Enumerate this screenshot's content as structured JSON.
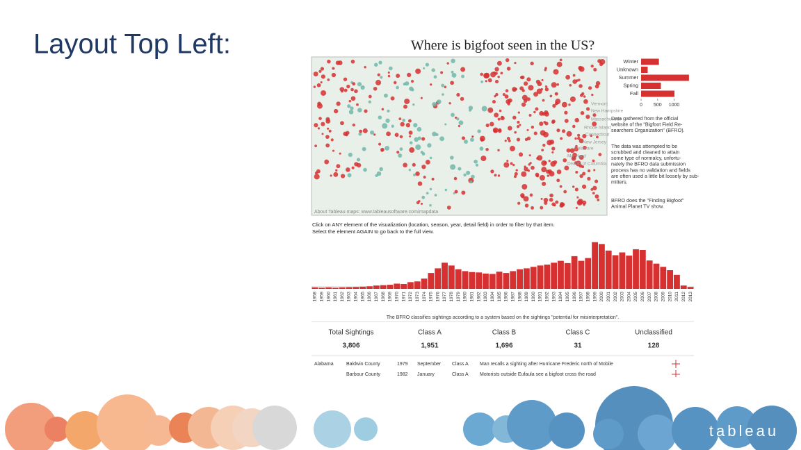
{
  "slide": {
    "title": "Layout Top Left:",
    "logo": "tableau"
  },
  "dashboard": {
    "title": "Where is bigfoot seen in the US?",
    "map": {
      "attribution": "About Tableau maps: www.tableausoftware.com/mapdata",
      "labels": [
        "Vermont",
        "New Hampshire",
        "Massachusetts",
        "Rhode Island",
        "Connecticut",
        "New Jersey",
        "Delaware",
        "Maryland",
        "District of Columbia"
      ]
    },
    "notes": [
      [
        "Data gathered from the official",
        "website of the \"Bigfoot Field Re-",
        "searchers Organization\" (BFRO)."
      ],
      [
        "The data was attempted to be",
        "scrubbed and cleaned to attain",
        "some type of normalcy, unfortu-",
        "nately the BFRO data submission",
        "process has no validation and fields",
        "are often used a little bit loosely by sub-",
        "mitters."
      ],
      [
        "BFRO does the \"Finding Bigfoot\"",
        "Animal Planet TV show."
      ]
    ],
    "instructions": [
      "Click on ANY element of the visualization (location, season, year, detail field) in order to filter by that item.",
      "Select the element AGAIN to go back to the full view."
    ],
    "footnote": "The BFRO classifies sightings according to a system based on the sightings \"potential for misinterpretation\".",
    "summary": {
      "headers": [
        "Total Sightings",
        "Class A",
        "Class B",
        "Class C",
        "Unclassified"
      ],
      "values": [
        "3,806",
        "1,951",
        "1,696",
        "31",
        "128"
      ]
    },
    "table": {
      "rows": [
        [
          "Alabama",
          "Baldwin County",
          "1979",
          "September",
          "Class A",
          "Man recalls a sighting after Hurricane Frederic north of Mobile"
        ],
        [
          "",
          "Barbour County",
          "1982",
          "January",
          "Class A",
          "Motorists outside Eufaula see a bigfoot cross the road"
        ]
      ]
    }
  },
  "chart_data": [
    {
      "type": "hbar",
      "categories": [
        "Winter",
        "Unknown",
        "Summer",
        "Spring",
        "Fall"
      ],
      "values": [
        540,
        200,
        1450,
        600,
        1010
      ],
      "color": "#d63031",
      "xlim": [
        0,
        1600
      ],
      "xticks": [
        0,
        500,
        1000
      ]
    },
    {
      "type": "bar",
      "categories": [
        "1958",
        "1959",
        "1960",
        "1961",
        "1962",
        "1963",
        "1964",
        "1965",
        "1966",
        "1967",
        "1968",
        "1969",
        "1970",
        "1971",
        "1972",
        "1973",
        "1974",
        "1975",
        "1976",
        "1977",
        "1978",
        "1979",
        "1980",
        "1981",
        "1982",
        "1983",
        "1984",
        "1985",
        "1986",
        "1987",
        "1988",
        "1989",
        "1990",
        "1991",
        "1992",
        "1993",
        "1994",
        "1995",
        "1996",
        "1997",
        "1998",
        "1999",
        "2000",
        "2001",
        "2002",
        "2003",
        "2004",
        "2005",
        "2006",
        "2007",
        "2008",
        "2009",
        "2010",
        "2011",
        "2012",
        "2013"
      ],
      "values": [
        8,
        6,
        8,
        6,
        8,
        9,
        10,
        12,
        14,
        18,
        20,
        22,
        28,
        26,
        36,
        40,
        55,
        85,
        110,
        140,
        125,
        105,
        95,
        90,
        88,
        82,
        80,
        92,
        85,
        95,
        105,
        110,
        118,
        125,
        130,
        140,
        150,
        138,
        175,
        150,
        165,
        250,
        240,
        205,
        180,
        195,
        178,
        212,
        208,
        152,
        135,
        118,
        100,
        75,
        18,
        10
      ],
      "color": "#d63031",
      "ylim": [
        0,
        260
      ]
    }
  ]
}
